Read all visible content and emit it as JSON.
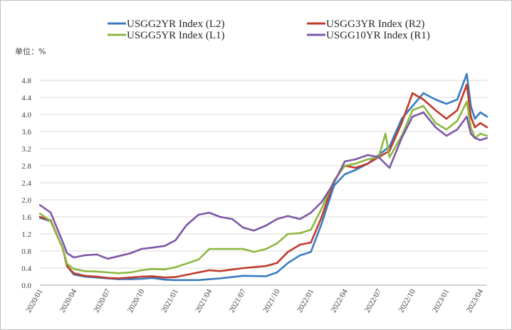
{
  "chart_data": {
    "type": "line",
    "unit_label": "单位：%",
    "y_ticks": [
      "0.0",
      "0.4",
      "0.8",
      "1.2",
      "1.6",
      "2.0",
      "2.4",
      "2.8",
      "3.2",
      "3.6",
      "4.0",
      "4.4",
      "4.8"
    ],
    "ylim": [
      0,
      5.0
    ],
    "x_ticks": [
      "2020/01",
      "2020/04",
      "2020/07",
      "2020/10",
      "2021/01",
      "2021/04",
      "2021/07",
      "2021/10",
      "2022/01",
      "2022/04",
      "2022/07",
      "2022/10",
      "2023/01",
      "2023/04"
    ],
    "grid": "horizontal",
    "legend_position": "top",
    "series": [
      {
        "name": "USGG2YR Index  (L2)",
        "color": "#3a7cc0",
        "x": [
          2020.0,
          2020.08,
          2020.17,
          2020.2,
          2020.25,
          2020.33,
          2020.42,
          2020.5,
          2020.58,
          2020.67,
          2020.75,
          2020.83,
          2020.92,
          2021.0,
          2021.17,
          2021.33,
          2021.5,
          2021.67,
          2021.75,
          2021.83,
          2021.92,
          2022.0,
          2022.08,
          2022.17,
          2022.25,
          2022.33,
          2022.42,
          2022.5,
          2022.58,
          2022.67,
          2022.75,
          2022.83,
          2022.92,
          2023.0,
          2023.08,
          2023.15,
          2023.18,
          2023.21,
          2023.25,
          2023.3
        ],
        "values": [
          1.58,
          1.5,
          0.85,
          0.45,
          0.25,
          0.2,
          0.18,
          0.16,
          0.14,
          0.14,
          0.15,
          0.17,
          0.13,
          0.12,
          0.12,
          0.16,
          0.22,
          0.21,
          0.3,
          0.52,
          0.7,
          0.78,
          1.45,
          2.33,
          2.6,
          2.7,
          2.85,
          3.05,
          3.25,
          3.9,
          4.2,
          4.5,
          4.35,
          4.25,
          4.35,
          4.95,
          4.2,
          3.9,
          4.05,
          3.95
        ]
      },
      {
        "name": "USGG3YR Index  (R2)",
        "color": "#c0392b",
        "x": [
          2020.0,
          2020.08,
          2020.17,
          2020.2,
          2020.25,
          2020.33,
          2020.42,
          2020.5,
          2020.58,
          2020.67,
          2020.75,
          2020.83,
          2020.92,
          2021.0,
          2021.17,
          2021.25,
          2021.33,
          2021.5,
          2021.67,
          2021.75,
          2021.83,
          2021.92,
          2022.0,
          2022.08,
          2022.17,
          2022.25,
          2022.33,
          2022.42,
          2022.5,
          2022.58,
          2022.67,
          2022.75,
          2022.83,
          2022.92,
          2023.0,
          2023.08,
          2023.15,
          2023.18,
          2023.21,
          2023.25,
          2023.3
        ],
        "values": [
          1.6,
          1.52,
          0.85,
          0.45,
          0.28,
          0.22,
          0.2,
          0.17,
          0.16,
          0.18,
          0.2,
          0.21,
          0.18,
          0.19,
          0.3,
          0.35,
          0.33,
          0.4,
          0.45,
          0.52,
          0.78,
          0.95,
          1.0,
          1.6,
          2.45,
          2.8,
          2.75,
          2.85,
          3.0,
          3.15,
          3.8,
          4.5,
          4.35,
          4.1,
          3.9,
          4.1,
          4.7,
          3.95,
          3.7,
          3.8,
          3.7
        ]
      },
      {
        "name": "USGG5YR Index  (L1)",
        "color": "#8db840",
        "x": [
          2020.0,
          2020.08,
          2020.17,
          2020.2,
          2020.25,
          2020.33,
          2020.42,
          2020.5,
          2020.58,
          2020.67,
          2020.75,
          2020.83,
          2020.92,
          2021.0,
          2021.17,
          2021.25,
          2021.33,
          2021.42,
          2021.5,
          2021.58,
          2021.67,
          2021.75,
          2021.83,
          2021.92,
          2022.0,
          2022.08,
          2022.17,
          2022.25,
          2022.33,
          2022.42,
          2022.5,
          2022.55,
          2022.58,
          2022.67,
          2022.75,
          2022.83,
          2022.92,
          2023.0,
          2023.08,
          2023.15,
          2023.18,
          2023.21,
          2023.25,
          2023.3
        ],
        "values": [
          1.68,
          1.5,
          0.85,
          0.5,
          0.38,
          0.33,
          0.32,
          0.3,
          0.28,
          0.3,
          0.35,
          0.38,
          0.37,
          0.42,
          0.6,
          0.85,
          0.85,
          0.85,
          0.85,
          0.78,
          0.85,
          0.98,
          1.2,
          1.22,
          1.3,
          1.8,
          2.45,
          2.8,
          2.85,
          2.95,
          3.0,
          3.55,
          3.0,
          3.5,
          4.1,
          4.2,
          3.8,
          3.65,
          3.85,
          4.3,
          3.7,
          3.45,
          3.55,
          3.5
        ]
      },
      {
        "name": "USGG10YR Index  (R1)",
        "color": "#7d58a6",
        "x": [
          2020.0,
          2020.08,
          2020.17,
          2020.2,
          2020.25,
          2020.33,
          2020.42,
          2020.5,
          2020.58,
          2020.67,
          2020.75,
          2020.83,
          2020.92,
          2021.0,
          2021.08,
          2021.17,
          2021.25,
          2021.33,
          2021.42,
          2021.5,
          2021.58,
          2021.67,
          2021.75,
          2021.83,
          2021.92,
          2022.0,
          2022.08,
          2022.17,
          2022.25,
          2022.33,
          2022.42,
          2022.5,
          2022.58,
          2022.67,
          2022.75,
          2022.83,
          2022.92,
          2023.0,
          2023.08,
          2023.15,
          2023.18,
          2023.21,
          2023.25,
          2023.3
        ],
        "values": [
          1.88,
          1.7,
          1.0,
          0.75,
          0.65,
          0.7,
          0.72,
          0.62,
          0.68,
          0.75,
          0.85,
          0.88,
          0.92,
          1.05,
          1.4,
          1.65,
          1.7,
          1.6,
          1.55,
          1.35,
          1.28,
          1.4,
          1.55,
          1.62,
          1.55,
          1.7,
          1.95,
          2.4,
          2.9,
          2.95,
          3.05,
          3.0,
          2.75,
          3.45,
          3.95,
          4.05,
          3.7,
          3.5,
          3.65,
          3.95,
          3.55,
          3.45,
          3.4,
          3.45
        ]
      }
    ]
  }
}
